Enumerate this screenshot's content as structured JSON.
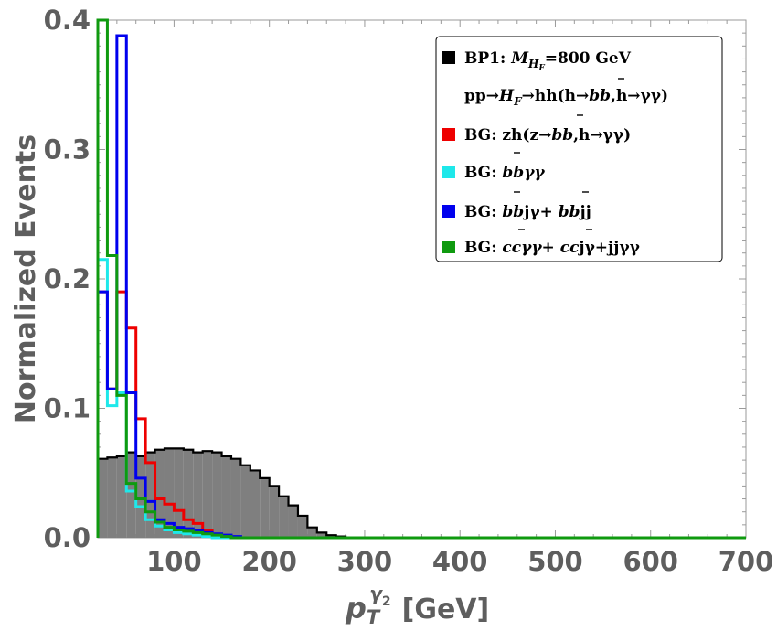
{
  "chart_data": {
    "type": "histogram",
    "xlabel": "p",
    "xlabel_sub": "T",
    "xlabel_sup": "γ",
    "xlabel_sup_sub": "2",
    "xlabel_unit": "[GeV]",
    "ylabel": "Normalized Events",
    "xlim": [
      20,
      700
    ],
    "ylim": [
      0,
      0.4
    ],
    "x_ticks": [
      "100",
      "200",
      "300",
      "400",
      "500",
      "600",
      "700"
    ],
    "y_ticks": [
      "0.0",
      "0.1",
      "0.2",
      "0.3",
      "0.4"
    ],
    "bin_width": 10,
    "bin_start": 20,
    "legend_position": "top-right",
    "series": [
      {
        "name": "BP1",
        "color": "#000000",
        "fill": "#7f7f7f",
        "filled": true,
        "values": [
          0.061,
          0.062,
          0.063,
          0.066,
          0.063,
          0.066,
          0.068,
          0.069,
          0.069,
          0.068,
          0.066,
          0.067,
          0.066,
          0.063,
          0.061,
          0.056,
          0.052,
          0.046,
          0.04,
          0.032,
          0.025,
          0.017,
          0.008,
          0.004,
          0.002,
          0.001
        ]
      },
      {
        "name": "zh",
        "color": "#ee0000",
        "filled": false,
        "values": [
          0.19,
          0.115,
          0.19,
          0.162,
          0.092,
          0.058,
          0.03,
          0.026,
          0.021,
          0.014,
          0.011,
          0.006,
          0.002,
          0.001
        ]
      },
      {
        "name": "bbγγ",
        "color": "#1ee8ea",
        "filled": false,
        "values": [
          0.215,
          0.102,
          0.112,
          0.036,
          0.024,
          0.014,
          0.009,
          0.006,
          0.004,
          0.003,
          0.002,
          0.001
        ]
      },
      {
        "name": "bbjγ+bbjj",
        "color": "#0000ee",
        "filled": false,
        "values": [
          0.19,
          0.115,
          0.388,
          0.112,
          0.046,
          0.028,
          0.014,
          0.011,
          0.008,
          0.007,
          0.006,
          0.004,
          0.003,
          0.002,
          0.001
        ]
      },
      {
        "name": "ccγγ+ccjγ+jjγγ",
        "color": "#0f9a0f",
        "filled": false,
        "values": [
          0.4,
          0.218,
          0.11,
          0.042,
          0.03,
          0.02,
          0.012,
          0.008,
          0.006,
          0.005,
          0.004,
          0.003,
          0.002,
          0.001
        ]
      }
    ]
  },
  "legend": {
    "bp1_line1": "BP1: ",
    "bp1_mass_symbol": "M",
    "bp1_mass_sub": "H",
    "bp1_mass_sub_sub": "F",
    "bp1_mass_value": "=800 GeV",
    "bp1_line2_pre": "pp→",
    "bp1_line2_hf": "H",
    "bp1_line2_hf_sub": "F",
    "bp1_line2_post": "→hh(h→",
    "bp1_line2_bb": "bb",
    "bp1_line2_end": ",h→γγ)",
    "bg_zh_pre": "BG: zh(z→",
    "bg_zh_bb": "bb",
    "bg_zh_post": ",h→γγ)",
    "bg_bbgg_pre": "BG: ",
    "bg_bbgg_bb": "bb",
    "bg_bbgg_post": "γγ",
    "bg_bbj_pre": "BG: ",
    "bg_bbj_bb1": "bb",
    "bg_bbj_mid": "jγ+ ",
    "bg_bbj_bb2": "bb",
    "bg_bbj_post": "jj",
    "bg_cc_pre": "BG: ",
    "bg_cc_cc1": "cc",
    "bg_cc_mid": "γγ+ ",
    "bg_cc_cc2": "cc",
    "bg_cc_post": "jγ+jjγγ"
  }
}
